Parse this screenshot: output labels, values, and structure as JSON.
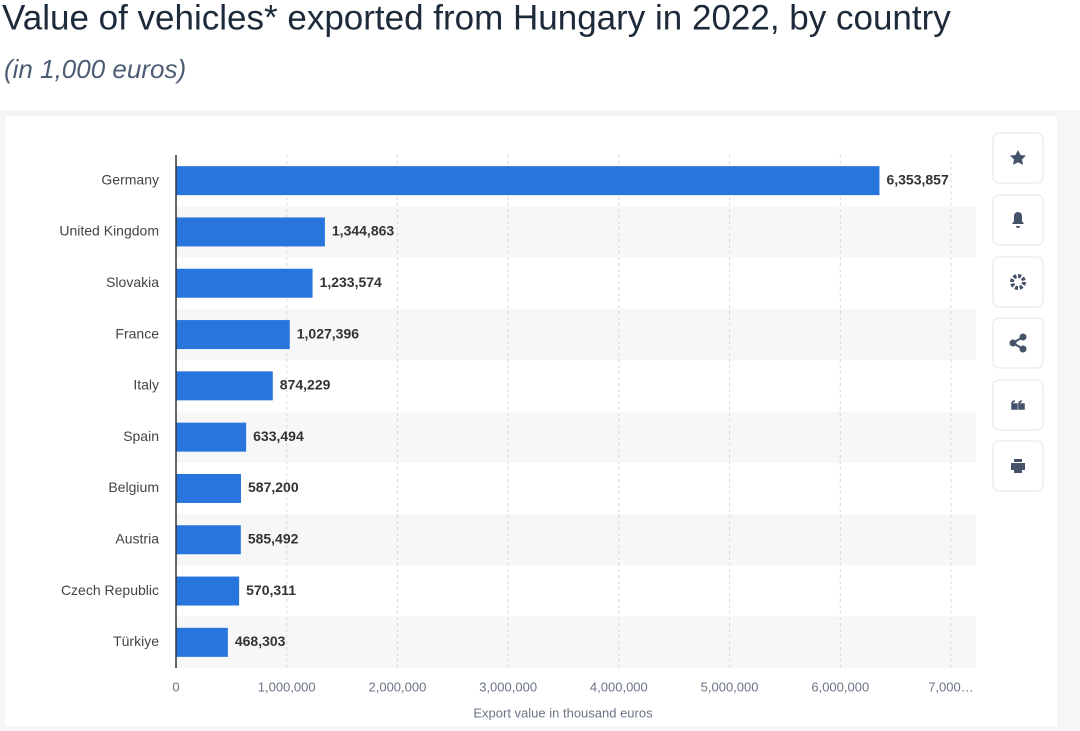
{
  "chart_data": {
    "type": "bar",
    "orientation": "horizontal",
    "title": "Value of vehicles* exported from Hungary in 2022, by country",
    "subtitle": "(in 1,000 euros)",
    "x_label": "Export value in thousand euros",
    "categories": [
      "Germany",
      "United Kingdom",
      "Slovakia",
      "France",
      "Italy",
      "Spain",
      "Belgium",
      "Austria",
      "Czech Republic",
      "Türkiye"
    ],
    "values": [
      6353857,
      1344863,
      1233574,
      1027396,
      874229,
      633494,
      587200,
      585492,
      570311,
      468303
    ],
    "value_labels": [
      "6,353,857",
      "1,344,863",
      "1,233,574",
      "1,027,396",
      "874,229",
      "633,494",
      "587,200",
      "585,492",
      "570,311",
      "468,303"
    ],
    "color": "#2876dd",
    "xlim": [
      0,
      7000000
    ],
    "xticks": [
      0,
      {
        "value": 1000000,
        "label": "1,000,000"
      },
      {
        "value": 2000000,
        "label": "2,000,000"
      },
      {
        "value": 3000000,
        "label": "3,000,000"
      },
      {
        "value": 4000000,
        "label": "4,000,000"
      },
      {
        "value": 5000000,
        "label": "5,000,000"
      },
      {
        "value": 6000000,
        "label": "6,000,000"
      },
      {
        "value": 7000000,
        "label": "7,000…"
      }
    ],
    "grid": true
  }
}
